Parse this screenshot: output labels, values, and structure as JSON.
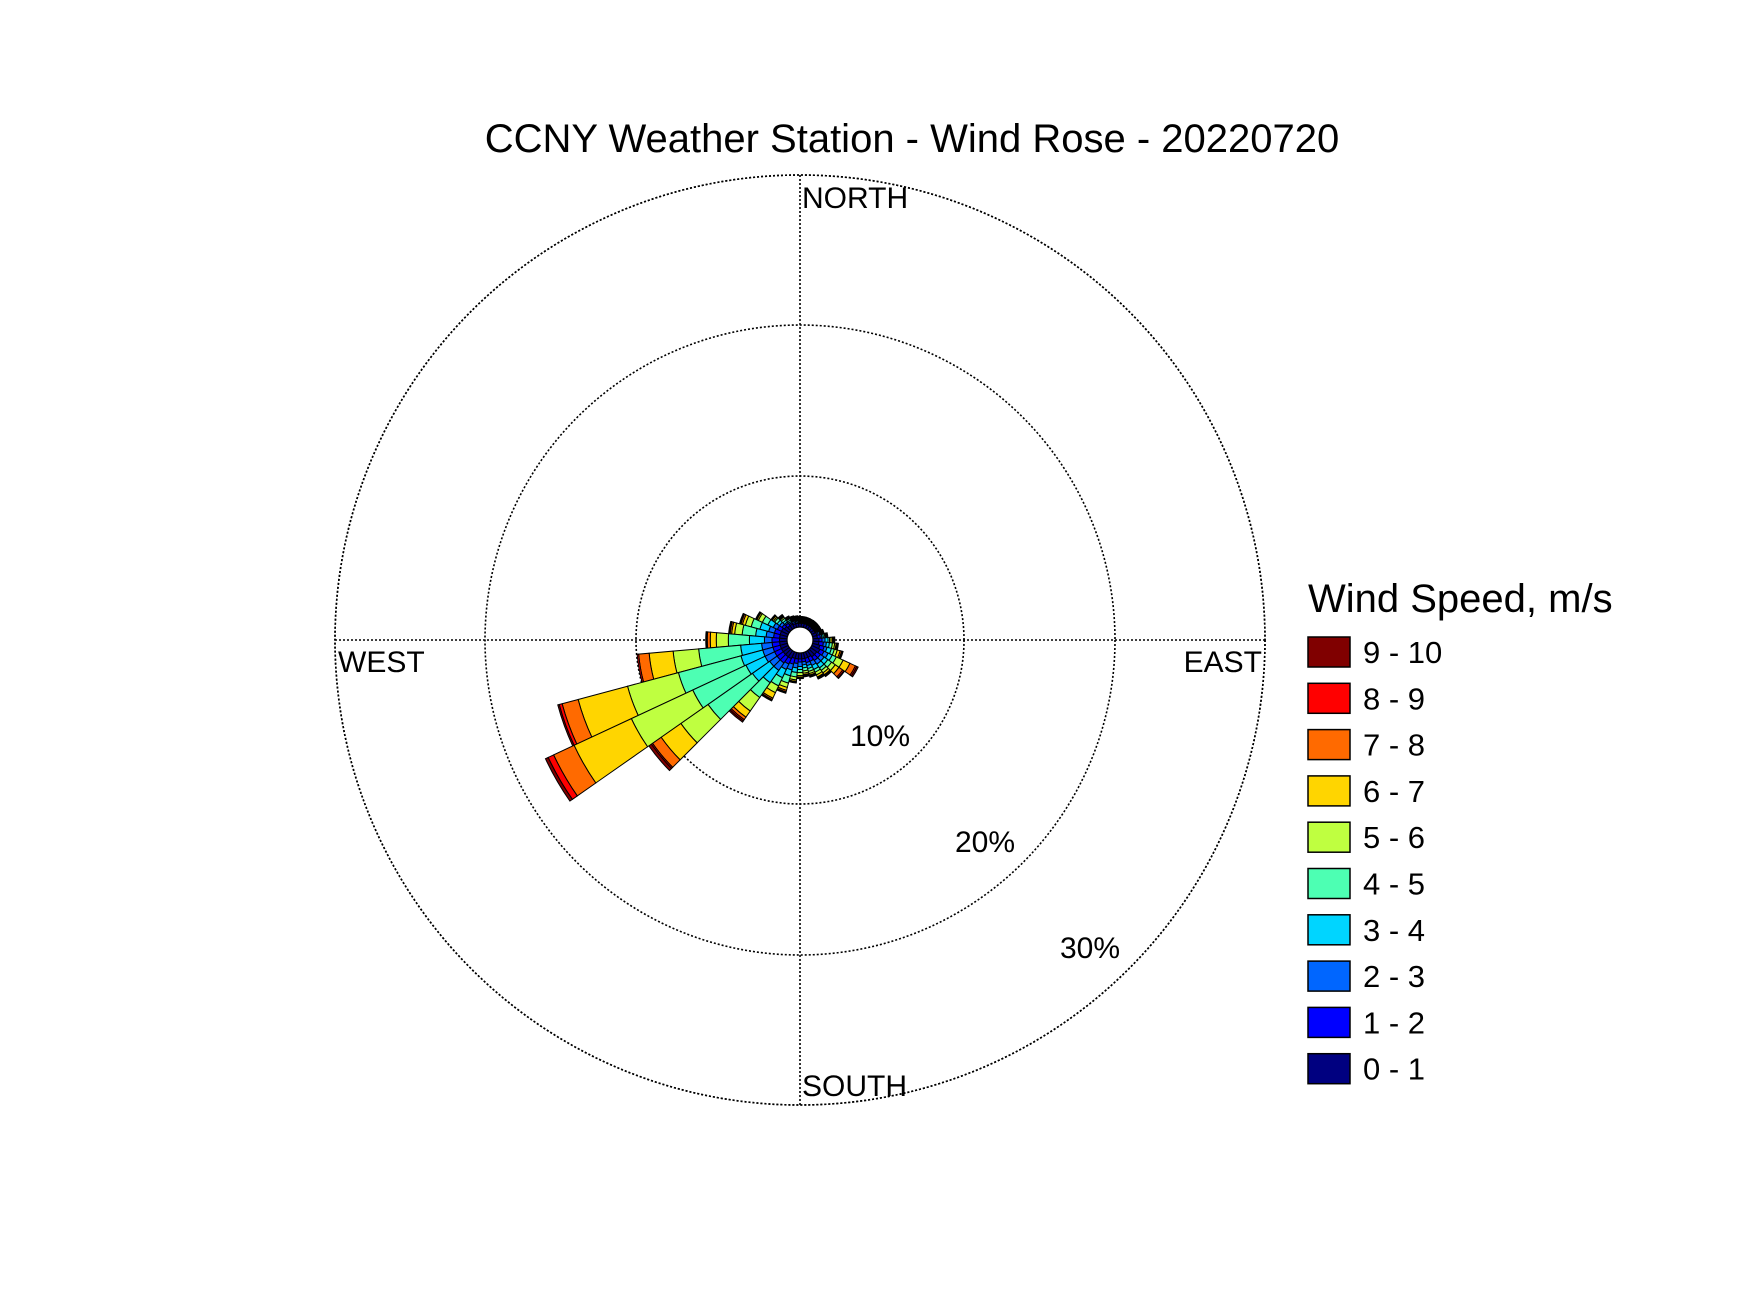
{
  "chart_data": {
    "type": "wind_rose",
    "title": "CCNY Weather Station - Wind Rose - 20220720",
    "directions": {
      "north": "NORTH",
      "south": "SOUTH",
      "east": "EAST",
      "west": "WEST"
    },
    "rings": [
      {
        "value": 10,
        "label": "10%"
      },
      {
        "value": 20,
        "label": "20%"
      },
      {
        "value": 30,
        "label": "30%"
      }
    ],
    "rmax": 31,
    "grid": true,
    "legend": {
      "title": "Wind Speed, m/s",
      "placement": "right",
      "bins": [
        {
          "label": "9 - 10",
          "color": "#800000"
        },
        {
          "label": "8 - 9",
          "color": "#FF0000"
        },
        {
          "label": "7 - 8",
          "color": "#FF6A00"
        },
        {
          "label": "6 - 7",
          "color": "#FFD500"
        },
        {
          "label": "5 - 6",
          "color": "#BFFF40"
        },
        {
          "label": "4 - 5",
          "color": "#4DFFB3"
        },
        {
          "label": "3 - 4",
          "color": "#00D5FF"
        },
        {
          "label": "2 - 3",
          "color": "#0066FF"
        },
        {
          "label": "1 - 2",
          "color": "#0000FF"
        },
        {
          "label": "0 - 1",
          "color": "#000080"
        }
      ]
    },
    "bin_colors_low_to_high": [
      "#000080",
      "#0000FF",
      "#0066FF",
      "#00D5FF",
      "#4DFFB3",
      "#BFFF40",
      "#FFD500",
      "#FF6A00",
      "#FF0000",
      "#800000"
    ],
    "sector_width_deg": 10,
    "sectors": [
      {
        "direction_deg": 240,
        "cumulative": [
          0.5,
          1.0,
          1.7,
          3.1,
          7.0,
          11.5,
          15.7,
          17.2,
          17.6,
          17.8
        ]
      },
      {
        "direction_deg": 250,
        "cumulative": [
          0.5,
          1.0,
          1.7,
          3.2,
          7.5,
          11.0,
          14.4,
          15.5,
          15.7,
          15.8
        ]
      },
      {
        "direction_deg": 260,
        "cumulative": [
          0.5,
          1.0,
          1.7,
          3.1,
          5.9,
          7.6,
          9.2,
          9.9,
          10.0,
          10.0
        ]
      },
      {
        "direction_deg": 230,
        "cumulative": [
          0.5,
          1.0,
          1.6,
          3.0,
          6.6,
          8.8,
          10.4,
          11.1,
          11.2,
          11.4
        ]
      },
      {
        "direction_deg": 220,
        "cumulative": [
          0.5,
          1.0,
          1.6,
          2.6,
          3.8,
          4.9,
          5.4,
          5.6,
          5.7,
          5.8
        ]
      },
      {
        "direction_deg": 270,
        "cumulative": [
          0.5,
          1.0,
          1.5,
          2.5,
          3.9,
          4.7,
          5.1,
          5.3,
          5.35,
          5.4
        ]
      },
      {
        "direction_deg": 280,
        "cumulative": [
          0.5,
          0.9,
          1.4,
          2.1,
          3.0,
          3.5,
          3.7,
          3.8,
          3.85,
          3.9
        ]
      },
      {
        "direction_deg": 210,
        "cumulative": [
          0.5,
          0.9,
          1.3,
          1.9,
          2.5,
          3.0,
          3.4,
          3.5,
          3.55,
          3.6
        ]
      },
      {
        "direction_deg": 290,
        "cumulative": [
          0.5,
          0.9,
          1.3,
          1.9,
          2.5,
          2.9,
          3.1,
          3.2,
          3.25,
          3.3
        ]
      },
      {
        "direction_deg": 200,
        "cumulative": [
          0.4,
          0.8,
          1.2,
          1.6,
          2.1,
          2.4,
          2.6,
          2.7,
          2.75,
          2.8
        ]
      },
      {
        "direction_deg": 300,
        "cumulative": [
          0.5,
          0.8,
          1.1,
          1.5,
          1.9,
          2.2,
          2.3,
          2.35,
          2.4,
          2.4
        ]
      },
      {
        "direction_deg": 190,
        "cumulative": [
          0.4,
          0.7,
          1.0,
          1.3,
          1.6,
          1.8,
          1.9,
          1.95,
          2.0,
          2.0
        ]
      },
      {
        "direction_deg": 180,
        "cumulative": [
          0.4,
          0.6,
          0.9,
          1.1,
          1.3,
          1.5,
          1.6,
          1.65,
          1.7,
          1.7
        ]
      },
      {
        "direction_deg": 310,
        "cumulative": [
          0.4,
          0.6,
          0.8,
          1.0,
          1.2,
          1.3,
          1.4,
          1.45,
          1.5,
          1.5
        ]
      },
      {
        "direction_deg": 120,
        "cumulative": [
          0.6,
          0.9,
          1.2,
          1.5,
          1.8,
          2.3,
          2.8,
          3.2,
          3.3,
          3.4
        ]
      },
      {
        "direction_deg": 130,
        "cumulative": [
          0.5,
          0.8,
          1.1,
          1.4,
          1.7,
          2.0,
          2.3,
          2.6,
          2.7,
          2.75
        ]
      },
      {
        "direction_deg": 110,
        "cumulative": [
          0.5,
          0.8,
          1.0,
          1.3,
          1.5,
          1.7,
          1.9,
          2.0,
          2.05,
          2.1
        ]
      },
      {
        "direction_deg": 140,
        "cumulative": [
          0.5,
          0.8,
          1.1,
          1.4,
          1.6,
          1.8,
          1.95,
          2.0,
          2.05,
          2.1
        ]
      },
      {
        "direction_deg": 150,
        "cumulative": [
          0.4,
          0.7,
          1.0,
          1.3,
          1.5,
          1.7,
          1.85,
          1.9,
          1.95,
          2.0
        ]
      },
      {
        "direction_deg": 100,
        "cumulative": [
          0.4,
          0.7,
          0.9,
          1.1,
          1.3,
          1.45,
          1.55,
          1.6,
          1.65,
          1.7
        ]
      },
      {
        "direction_deg": 160,
        "cumulative": [
          0.4,
          0.7,
          0.9,
          1.1,
          1.3,
          1.45,
          1.55,
          1.6,
          1.65,
          1.7
        ]
      },
      {
        "direction_deg": 170,
        "cumulative": [
          0.4,
          0.6,
          0.8,
          1.0,
          1.2,
          1.35,
          1.45,
          1.5,
          1.55,
          1.6
        ]
      },
      {
        "direction_deg": 90,
        "cumulative": [
          0.4,
          0.6,
          0.8,
          1.0,
          1.1,
          1.2,
          1.3,
          1.35,
          1.4,
          1.45
        ]
      },
      {
        "direction_deg": 320,
        "cumulative": [
          0.3,
          0.5,
          0.6,
          0.75,
          0.9,
          1.0,
          1.05,
          1.1,
          1.15,
          1.2
        ]
      },
      {
        "direction_deg": 80,
        "cumulative": [
          0.3,
          0.5,
          0.6,
          0.7,
          0.8,
          0.85,
          0.9,
          0.95,
          1.0,
          1.0
        ]
      },
      {
        "direction_deg": 330,
        "cumulative": [
          0.3,
          0.4,
          0.5,
          0.6,
          0.7,
          0.75,
          0.8,
          0.85,
          0.9,
          0.9
        ]
      },
      {
        "direction_deg": 70,
        "cumulative": [
          0.3,
          0.4,
          0.5,
          0.55,
          0.6,
          0.65,
          0.7,
          0.75,
          0.8,
          0.8
        ]
      },
      {
        "direction_deg": 340,
        "cumulative": [
          0.25,
          0.35,
          0.45,
          0.5,
          0.55,
          0.6,
          0.65,
          0.7,
          0.75,
          0.8
        ]
      },
      {
        "direction_deg": 350,
        "cumulative": [
          0.25,
          0.3,
          0.4,
          0.45,
          0.5,
          0.55,
          0.6,
          0.65,
          0.7,
          0.75
        ]
      },
      {
        "direction_deg": 0,
        "cumulative": [
          0.25,
          0.3,
          0.35,
          0.4,
          0.45,
          0.5,
          0.55,
          0.6,
          0.65,
          0.7
        ]
      },
      {
        "direction_deg": 10,
        "cumulative": [
          0.25,
          0.3,
          0.35,
          0.4,
          0.45,
          0.5,
          0.55,
          0.6,
          0.65,
          0.7
        ]
      },
      {
        "direction_deg": 20,
        "cumulative": [
          0.25,
          0.3,
          0.35,
          0.4,
          0.45,
          0.5,
          0.55,
          0.6,
          0.65,
          0.7
        ]
      },
      {
        "direction_deg": 30,
        "cumulative": [
          0.25,
          0.3,
          0.35,
          0.4,
          0.45,
          0.5,
          0.55,
          0.6,
          0.65,
          0.7
        ]
      },
      {
        "direction_deg": 40,
        "cumulative": [
          0.25,
          0.3,
          0.35,
          0.4,
          0.45,
          0.5,
          0.55,
          0.6,
          0.65,
          0.7
        ]
      },
      {
        "direction_deg": 50,
        "cumulative": [
          0.25,
          0.3,
          0.35,
          0.4,
          0.45,
          0.5,
          0.55,
          0.6,
          0.65,
          0.7
        ]
      },
      {
        "direction_deg": 60,
        "cumulative": [
          0.25,
          0.3,
          0.35,
          0.4,
          0.45,
          0.5,
          0.55,
          0.6,
          0.65,
          0.7
        ]
      }
    ]
  }
}
